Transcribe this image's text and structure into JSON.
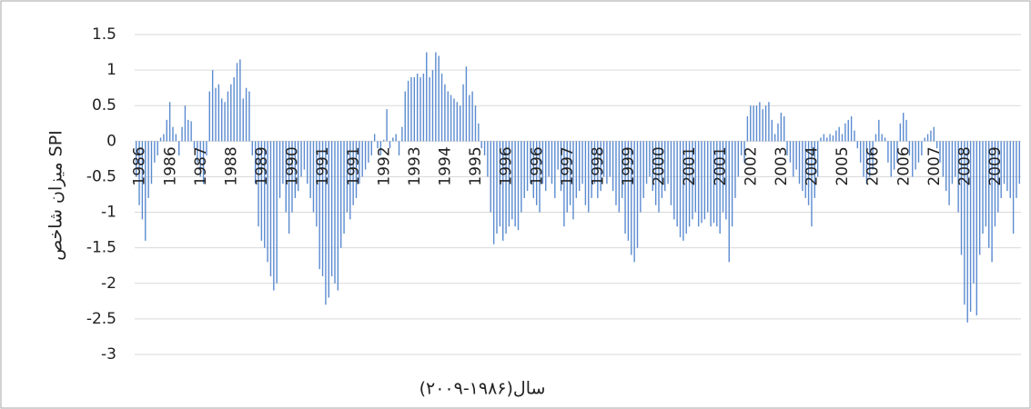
{
  "chart_data": {
    "type": "bar",
    "x_label": "سال(۱۹۸۶-۲۰۰۹)",
    "y_label": "میزان شاخص SPI",
    "color": "#5b8bd0",
    "ylim": [
      -3,
      1.5
    ],
    "yticks": [
      1.5,
      1,
      0.5,
      0,
      -0.5,
      -1,
      -1.5,
      -2,
      -2.5,
      -3
    ],
    "grid": true,
    "categories": [
      "1986",
      null,
      null,
      null,
      null,
      null,
      null,
      null,
      null,
      null,
      "1986",
      null,
      null,
      null,
      null,
      null,
      null,
      null,
      null,
      null,
      "1987",
      null,
      null,
      null,
      null,
      null,
      null,
      null,
      null,
      null,
      "1988",
      null,
      null,
      null,
      null,
      null,
      null,
      null,
      null,
      null,
      "1989",
      null,
      null,
      null,
      null,
      null,
      null,
      null,
      null,
      null,
      "1990",
      null,
      null,
      null,
      null,
      null,
      null,
      null,
      null,
      null,
      "1991",
      null,
      null,
      null,
      null,
      null,
      null,
      null,
      null,
      null,
      "1991",
      null,
      null,
      null,
      null,
      null,
      null,
      null,
      null,
      null,
      "1992",
      null,
      null,
      null,
      null,
      null,
      null,
      null,
      null,
      null,
      "1993",
      null,
      null,
      null,
      null,
      null,
      null,
      null,
      null,
      null,
      "1994",
      null,
      null,
      null,
      null,
      null,
      null,
      null,
      null,
      null,
      "1995",
      null,
      null,
      null,
      null,
      null,
      null,
      null,
      null,
      null,
      "1996",
      null,
      null,
      null,
      null,
      null,
      null,
      null,
      null,
      null,
      "1996",
      null,
      null,
      null,
      null,
      null,
      null,
      null,
      null,
      null,
      "1997",
      null,
      null,
      null,
      null,
      null,
      null,
      null,
      null,
      null,
      "1998",
      null,
      null,
      null,
      null,
      null,
      null,
      null,
      null,
      null,
      "1999",
      null,
      null,
      null,
      null,
      null,
      null,
      null,
      null,
      null,
      "2000",
      null,
      null,
      null,
      null,
      null,
      null,
      null,
      null,
      null,
      "2001",
      null,
      null,
      null,
      null,
      null,
      null,
      null,
      null,
      null,
      "2001",
      null,
      null,
      null,
      null,
      null,
      null,
      null,
      null,
      null,
      "2002",
      null,
      null,
      null,
      null,
      null,
      null,
      null,
      null,
      null,
      "2003",
      null,
      null,
      null,
      null,
      null,
      null,
      null,
      null,
      null,
      "2004",
      null,
      null,
      null,
      null,
      null,
      null,
      null,
      null,
      null,
      "2005",
      null,
      null,
      null,
      null,
      null,
      null,
      null,
      null,
      null,
      "2006",
      null,
      null,
      null,
      null,
      null,
      null,
      null,
      null,
      null,
      "2006",
      null,
      null,
      null,
      null,
      null,
      null,
      null,
      null,
      null,
      "2007",
      null,
      null,
      null,
      null,
      null,
      null,
      null,
      null,
      null,
      "2008",
      null,
      null,
      null,
      null,
      null,
      null,
      null,
      null,
      null,
      "2009",
      null,
      null,
      null,
      null,
      null,
      null,
      null,
      null,
      null
    ],
    "values": [
      -0.5,
      -0.9,
      -1.1,
      -1.4,
      -0.8,
      -0.6,
      -0.3,
      -0.2,
      0.05,
      0.1,
      0.3,
      0.55,
      0.2,
      0.1,
      -0.2,
      0.2,
      0.5,
      0.3,
      0.28,
      -0.1,
      -0.3,
      -0.5,
      -0.6,
      -0.2,
      0.7,
      1.0,
      0.75,
      0.8,
      0.6,
      0.55,
      0.7,
      0.8,
      0.9,
      1.1,
      1.15,
      0.6,
      0.75,
      0.7,
      -0.2,
      -0.6,
      -1.2,
      -1.4,
      -1.5,
      -1.7,
      -1.9,
      -2.1,
      -2.0,
      -0.8,
      -0.6,
      -1.0,
      -1.3,
      -1.0,
      -0.8,
      -0.7,
      -0.5,
      -0.4,
      -0.6,
      -0.8,
      -1.0,
      -1.2,
      -1.8,
      -1.9,
      -2.3,
      -2.2,
      -1.9,
      -2.0,
      -2.1,
      -1.5,
      -1.3,
      -1.0,
      -1.1,
      -0.9,
      -0.8,
      -0.6,
      -0.5,
      -0.4,
      -0.3,
      -0.2,
      0.1,
      -0.1,
      -0.2,
      0.02,
      0.45,
      -0.1,
      0.05,
      0.1,
      -0.2,
      0.2,
      0.7,
      0.85,
      0.9,
      0.9,
      0.95,
      0.9,
      0.95,
      1.25,
      0.9,
      1.0,
      1.25,
      1.2,
      0.95,
      0.8,
      0.7,
      0.65,
      0.6,
      0.55,
      0.5,
      0.8,
      1.05,
      0.65,
      0.7,
      0.5,
      0.25,
      -0.1,
      -0.2,
      -0.5,
      -1.0,
      -1.45,
      -1.3,
      -1.2,
      -1.4,
      -1.3,
      -1.2,
      -1.1,
      -1.2,
      -1.25,
      -1.0,
      -0.8,
      -0.7,
      -0.6,
      -0.8,
      -0.9,
      -1.0,
      -0.6,
      -0.7,
      -0.5,
      -0.6,
      -0.8,
      -0.4,
      -0.7,
      -1.2,
      -1.0,
      -0.9,
      -1.1,
      -0.8,
      -0.7,
      -0.6,
      -0.9,
      -1.0,
      -0.8,
      -0.6,
      -0.8,
      -0.7,
      -0.5,
      -0.6,
      -0.5,
      -0.7,
      -0.9,
      -1.0,
      -0.8,
      -1.3,
      -1.4,
      -1.6,
      -1.7,
      -1.5,
      -1.0,
      -0.8,
      -0.6,
      -0.5,
      -0.7,
      -0.9,
      -1.0,
      -0.8,
      -0.7,
      -0.6,
      -0.9,
      -1.1,
      -1.2,
      -1.35,
      -1.4,
      -1.3,
      -1.2,
      -1.1,
      -1.0,
      -1.2,
      -1.15,
      -1.1,
      -1.0,
      -1.2,
      -1.15,
      -1.2,
      -1.3,
      -1.0,
      -1.1,
      -1.7,
      -1.2,
      -0.8,
      -0.5,
      -0.2,
      -0.3,
      0.35,
      0.5,
      0.5,
      0.5,
      0.55,
      0.45,
      0.5,
      0.55,
      0.3,
      0.1,
      0.25,
      0.4,
      0.35,
      -0.2,
      -0.3,
      -0.5,
      -0.4,
      -0.6,
      -0.7,
      -0.8,
      -0.9,
      -1.2,
      -0.8,
      -0.5,
      0.05,
      0.1,
      0.05,
      0.1,
      0.08,
      0.15,
      0.2,
      0.1,
      0.25,
      0.3,
      0.35,
      0.15,
      -0.1,
      -0.3,
      -0.5,
      -0.6,
      -0.5,
      -0.4,
      0.1,
      0.3,
      0.1,
      0.05,
      -0.3,
      -0.5,
      -0.4,
      -0.3,
      0.25,
      0.4,
      0.3,
      -0.2,
      -0.5,
      -0.4,
      -0.3,
      -0.2,
      0.05,
      0.1,
      0.15,
      0.2,
      -0.1,
      -0.3,
      -0.5,
      -0.7,
      -0.9,
      -0.6,
      -0.5,
      -1.0,
      -1.6,
      -2.3,
      -2.55,
      -2.4,
      -2.0,
      -2.45,
      -1.6,
      -1.3,
      -1.2,
      -1.5,
      -1.7,
      -1.2,
      -1.0,
      -0.8,
      -0.6,
      -0.7,
      -0.8,
      -1.3,
      -0.8,
      -0.6
    ]
  }
}
